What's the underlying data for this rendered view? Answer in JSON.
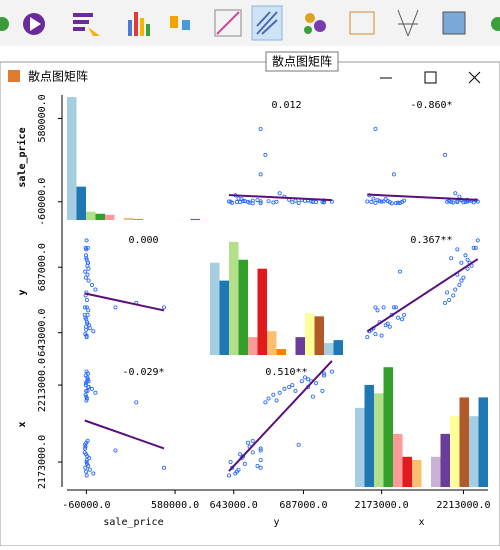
{
  "toolbar": {
    "tooltip": "散点图矩阵"
  },
  "window": {
    "title": "散点图矩阵"
  },
  "chart_data": {
    "type": "scatter_matrix",
    "point_color": "#2266ff",
    "line_color": "#5a0f7a",
    "palette": [
      "#a6cee3",
      "#1f78b4",
      "#b2df8a",
      "#33a02c",
      "#fb9a99",
      "#e31a1c",
      "#fdbf6f",
      "#ff7f00",
      "#cab2d6",
      "#6a3d9a",
      "#ffff99",
      "#b15928"
    ],
    "correlation_labels": [
      [
        null,
        "0.012",
        "-0.860*"
      ],
      [
        "0.000",
        null,
        "0.367**"
      ],
      [
        "-0.029*",
        "0.510**",
        null
      ]
    ],
    "variables": [
      {
        "name": "sale_price",
        "lim": [
          -200000,
          760000
        ],
        "ticks": [
          {
            "value": -60000,
            "label": "-60000.0"
          },
          {
            "value": 580000,
            "label": "580000.0"
          }
        ],
        "hist_ylim": [
          0,
          120
        ],
        "hist_counts": [
          118,
          32,
          8,
          6,
          5,
          0,
          2,
          1,
          0,
          0,
          0,
          0,
          0,
          1
        ],
        "values": [
          -62000,
          -55000,
          -70000,
          -48000,
          -65000,
          -58000,
          -40000,
          -72000,
          -60000,
          -52000,
          -45000,
          -68000,
          -35000,
          -61000,
          -57000,
          -66000,
          -20000,
          -50000,
          -63000,
          -59000,
          -10000,
          -54000,
          -67000,
          -47000,
          -56000,
          5000,
          -64000,
          -53000,
          -60500,
          -49000,
          150000,
          -58500,
          -62500,
          -51000,
          300000,
          -44000,
          -69000,
          -57500,
          500000,
          -61500
        ]
      },
      {
        "name": "y",
        "lim": [
          628000,
          712000
        ],
        "ticks": [
          {
            "value": 643000,
            "label": "643000.0"
          },
          {
            "value": 687000,
            "label": "687000.0"
          }
        ],
        "hist_ylim": [
          0,
          42
        ],
        "hist_counts": [
          31,
          25,
          38,
          32,
          6,
          29,
          8,
          2,
          0,
          6,
          14,
          13,
          4,
          5
        ],
        "values": [
          645000,
          650000,
          660000,
          690000,
          700000,
          640000,
          648000,
          655000,
          670000,
          682000,
          686000,
          642000,
          646000,
          652000,
          660000,
          668000,
          675000,
          690000,
          695000,
          705000,
          644000,
          649000,
          653000,
          658000,
          665000,
          672000,
          680000,
          688000,
          693000,
          700000,
          660000,
          641000,
          647000,
          655000,
          663000,
          678000,
          684000,
          692000,
          660000,
          699000
        ]
      },
      {
        "name": "x",
        "lim": [
          2160000,
          2225000
        ],
        "ticks": [
          {
            "value": 2173000,
            "label": "2173000.0"
          },
          {
            "value": 2213000,
            "label": "2213000.0"
          }
        ],
        "hist_ylim": [
          0,
          120
        ],
        "hist_counts": [
          76,
          98,
          90,
          115,
          51,
          29,
          26,
          0,
          29,
          51,
          68,
          86,
          68,
          86
        ],
        "values": [
          2168000,
          2172000,
          2180000,
          2212000,
          2218000,
          2166000,
          2175000,
          2178000,
          2205000,
          2210000,
          2215000,
          2170000,
          2169000,
          2183000,
          2174000,
          2208000,
          2211000,
          2216000,
          2214000,
          2220000,
          2167000,
          2176000,
          2181000,
          2171000,
          2206000,
          2209000,
          2213000,
          2217000,
          2207000,
          2219000,
          2179000,
          2173000,
          2177000,
          2184000,
          2204000,
          2212000,
          2182000,
          2215000,
          2170000,
          2210000
        ]
      }
    ]
  }
}
